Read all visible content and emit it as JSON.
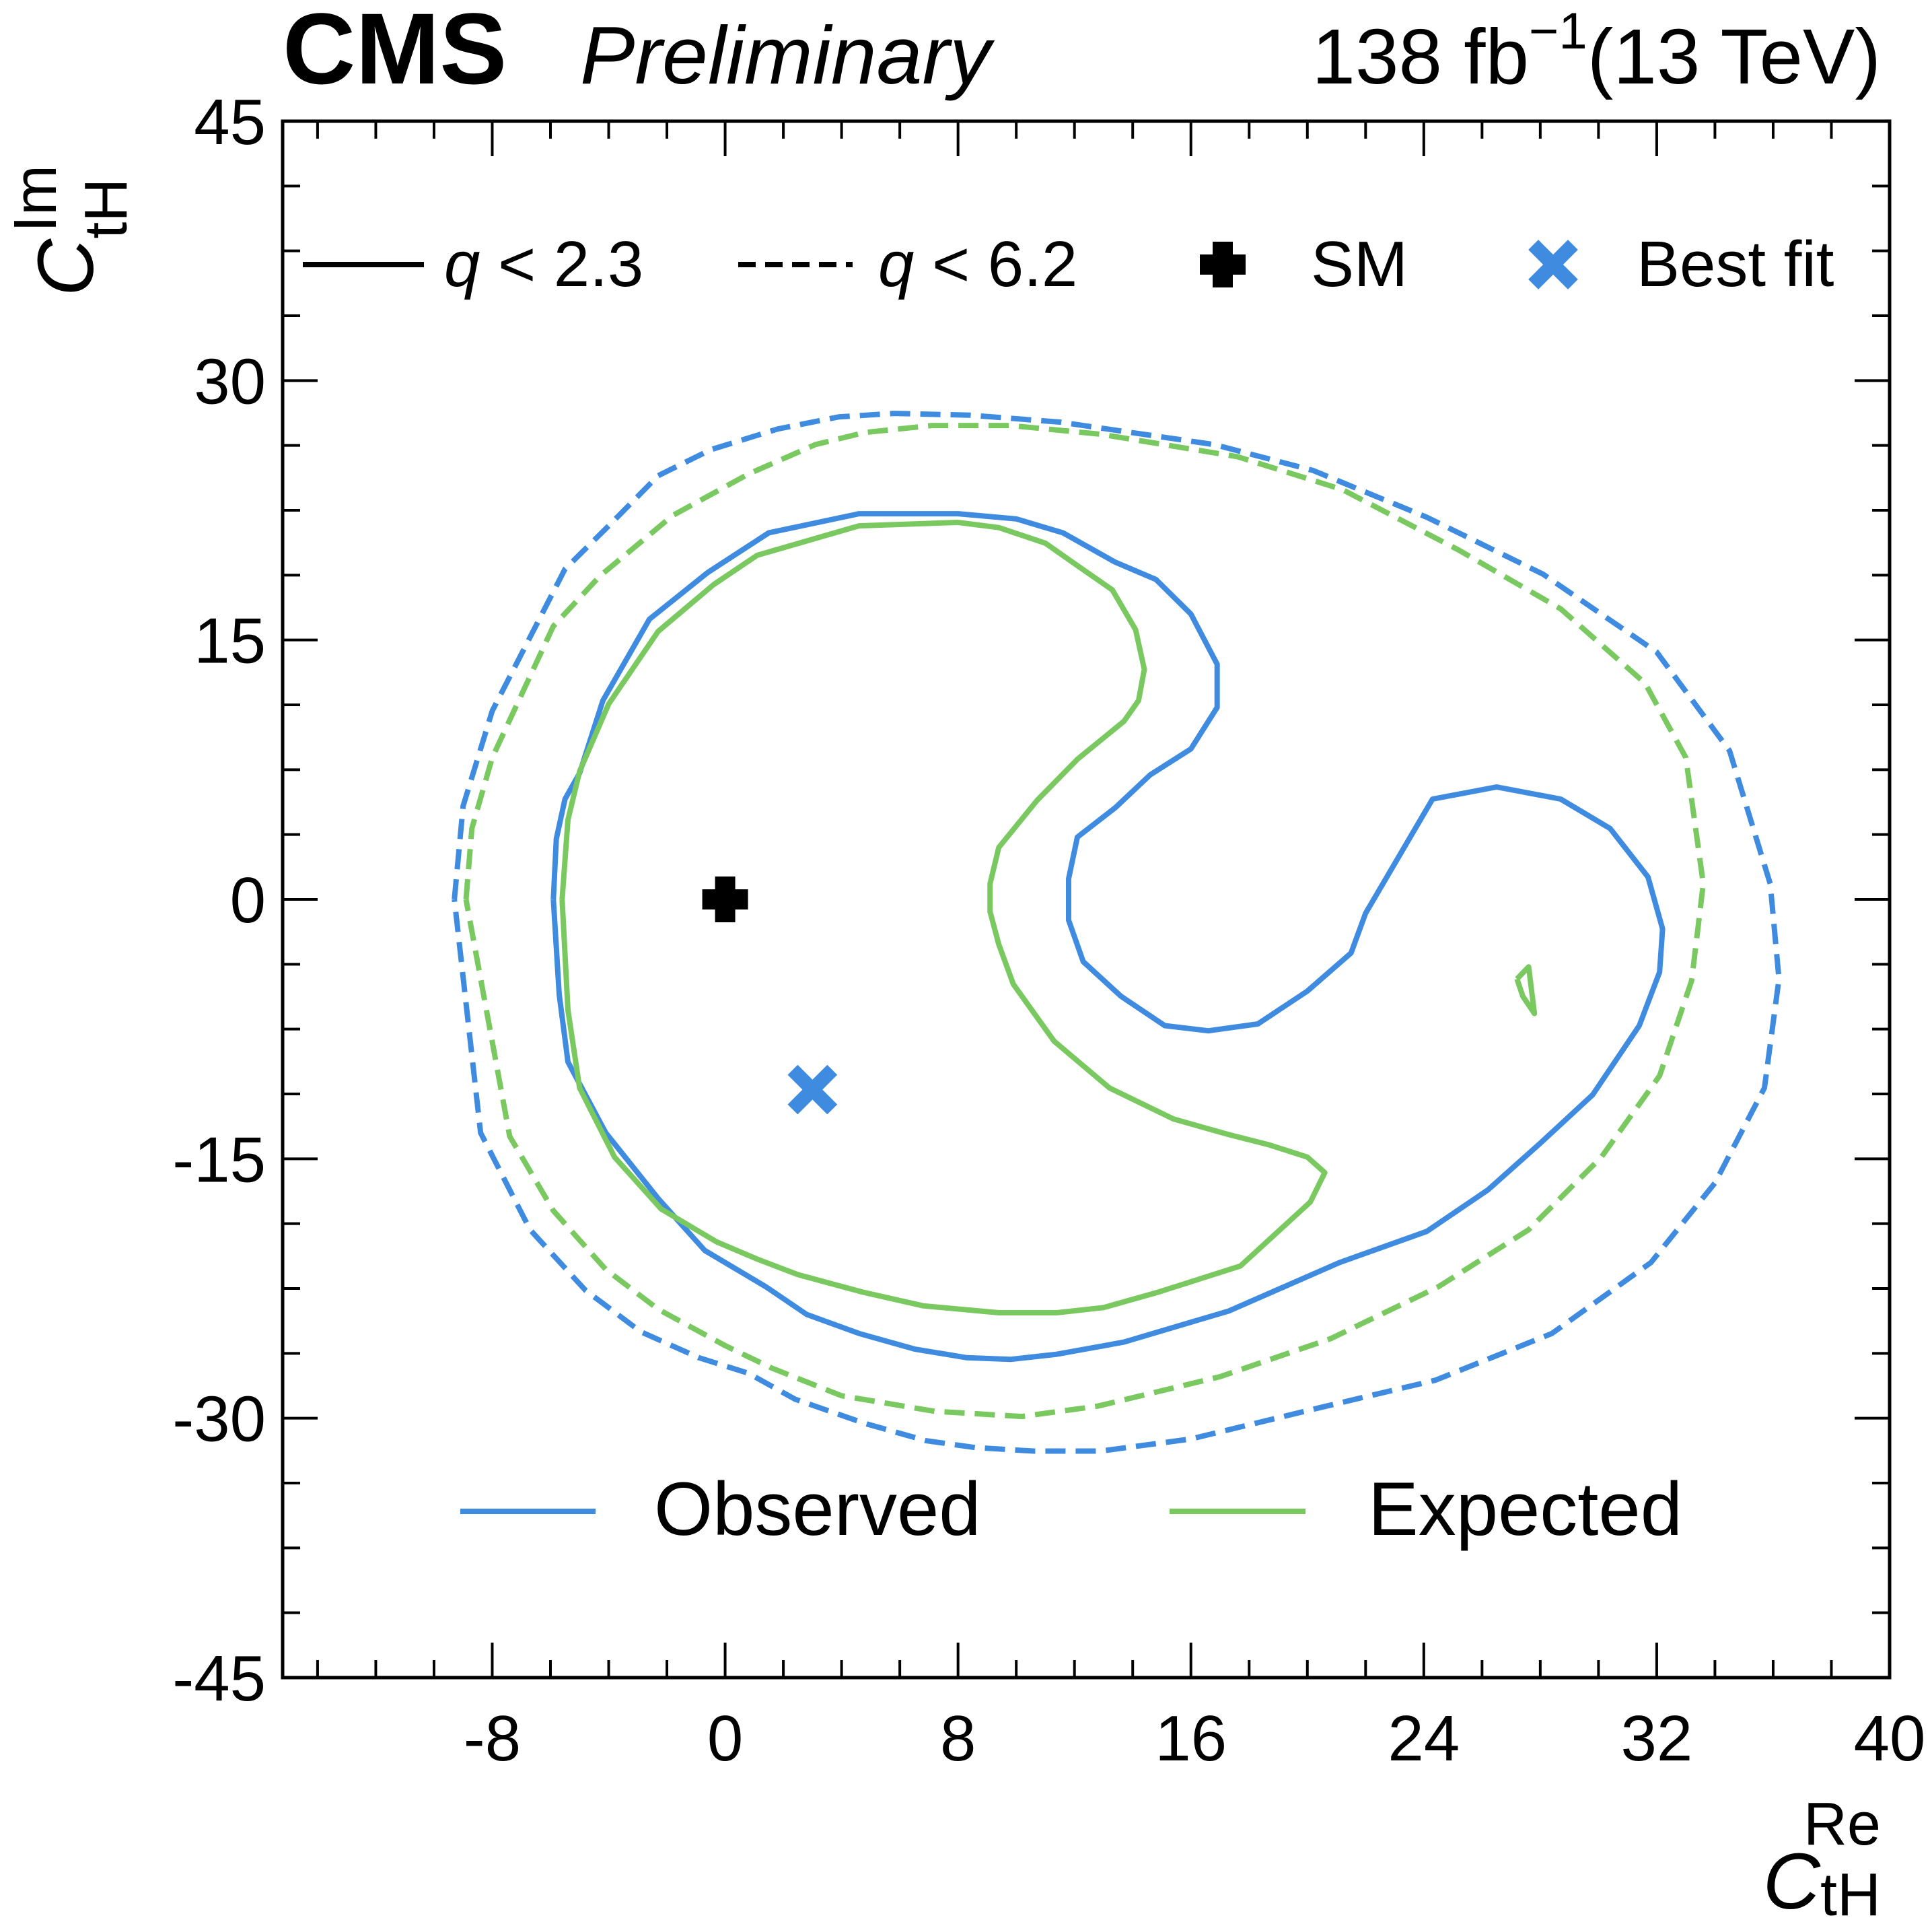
{
  "header": {
    "experiment": "CMS",
    "status": "Preliminary",
    "lumi_value": "138 fb",
    "lumi_exponent": "−1",
    "energy": "(13 TeV)"
  },
  "colors": {
    "observed": "#3f8be0",
    "expected": "#79c960",
    "axis": "#000000",
    "sm_marker": "#000000",
    "bestfit_marker": "#3f8be0"
  },
  "chart_data": {
    "type": "contour",
    "xlabel": {
      "symbol": "C",
      "sub": "tH",
      "sup": "Re"
    },
    "ylabel": {
      "symbol": "C",
      "sub": "tH",
      "sup": "Im"
    },
    "xlim": [
      -15.2,
      40
    ],
    "ylim": [
      -45,
      45
    ],
    "xticks": [
      -8,
      0,
      8,
      16,
      24,
      32,
      40
    ],
    "xtick_labels": [
      "-8",
      "0",
      "8",
      "16",
      "24",
      "32",
      "40"
    ],
    "yticks": [
      -45,
      -30,
      -15,
      0,
      15,
      30,
      45
    ],
    "ytick_labels": [
      "-45",
      "-30",
      "-15",
      "0",
      "15",
      "30",
      "45"
    ],
    "x_minor_step": 2,
    "y_minor_step": 3.75,
    "style_legend": [
      {
        "label": "q < 2.3",
        "q": "q",
        "rest": " < 2.3",
        "dash": "solid"
      },
      {
        "label": "q < 6.2",
        "q": "q",
        "rest": " < 6.2",
        "dash": "dashed"
      },
      {
        "label": "SM",
        "marker": "plus"
      },
      {
        "label": "Best fit",
        "marker": "x"
      }
    ],
    "color_legend": [
      {
        "label": "Observed",
        "color_key": "observed"
      },
      {
        "label": "Expected",
        "color_key": "expected"
      }
    ],
    "points": {
      "SM": {
        "x": 0,
        "y": 0
      },
      "best_fit": {
        "x": 3,
        "y": -11
      }
    },
    "series": [
      {
        "name": "Observed q < 2.3",
        "color_key": "observed",
        "dash": "solid",
        "x": [
          -5.9,
          -5.8,
          -5.5,
          -5.0,
          -4.2,
          -2.6,
          -0.6,
          1.5,
          4.6,
          8.0,
          10.0,
          11.6,
          13.4,
          14.8,
          16.0,
          16.9,
          16.9,
          16.0,
          14.6,
          13.4,
          12.1,
          11.8,
          11.8,
          12.3,
          13.6,
          15.1,
          16.6,
          18.3,
          20.0,
          21.5,
          22.0,
          24.3,
          26.5,
          28.7,
          30.4,
          31.7,
          32.2,
          32.1,
          31.4,
          29.8,
          28.0,
          26.2,
          24.1,
          21.1,
          17.3,
          13.7,
          11.4,
          9.8,
          8.3,
          6.5,
          4.6,
          2.8,
          1.4,
          -0.7,
          -2.3,
          -4.1,
          -5.4,
          -5.7,
          -5.9
        ],
        "y": [
          0,
          3.5,
          5.8,
          7.3,
          11.5,
          16.2,
          18.9,
          21.2,
          22.3,
          22.3,
          22.0,
          21.2,
          19.5,
          18.5,
          16.5,
          13.6,
          11.1,
          8.7,
          7.2,
          5.3,
          3.6,
          1.2,
          -1.2,
          -3.6,
          -5.6,
          -7.3,
          -7.6,
          -7.2,
          -5.3,
          -3.1,
          -0.8,
          5.8,
          6.5,
          5.8,
          4.1,
          1.3,
          -1.7,
          -4.2,
          -7.3,
          -11.3,
          -14.1,
          -16.8,
          -19.2,
          -21.0,
          -23.8,
          -25.6,
          -26.3,
          -26.6,
          -26.5,
          -26.0,
          -25.1,
          -24.0,
          -22.4,
          -20.3,
          -17.3,
          -13.5,
          -9.4,
          -5.5,
          0
        ]
      },
      {
        "name": "Expected q < 2.3",
        "color_key": "expected",
        "dash": "solid",
        "x": [
          -5.6,
          -5.4,
          -5.0,
          -4.0,
          -2.3,
          -0.4,
          1.1,
          4.6,
          8.0,
          9.4,
          11.0,
          12.1,
          13.3,
          14.1,
          14.4,
          14.2,
          13.7,
          12.1,
          10.7,
          9.4,
          9.1,
          9.1,
          9.4,
          9.9,
          11.3,
          13.2,
          15.4,
          17.3,
          18.7,
          20.0,
          20.6,
          20.1,
          17.7,
          14.9,
          13.0,
          11.4,
          9.4,
          6.8,
          4.7,
          2.5,
          1.1,
          -0.3,
          -2.2,
          -3.8,
          -5.0,
          -5.4,
          -5.6
        ],
        "y": [
          0,
          4.6,
          7.4,
          11.3,
          15.5,
          18.2,
          19.9,
          21.6,
          21.8,
          21.5,
          20.6,
          19.3,
          17.9,
          15.6,
          13.3,
          11.5,
          10.3,
          8.1,
          5.7,
          3.0,
          0.9,
          -0.7,
          -2.6,
          -4.9,
          -8.2,
          -10.9,
          -12.7,
          -13.6,
          -14.2,
          -14.9,
          -15.8,
          -17.5,
          -21.2,
          -22.7,
          -23.6,
          -23.9,
          -23.9,
          -23.5,
          -22.7,
          -21.7,
          -20.8,
          -19.8,
          -17.9,
          -14.9,
          -10.9,
          -6.4,
          0
        ]
      },
      {
        "name": "Observed q < 6.2",
        "color_key": "observed",
        "dash": "dashed",
        "x": [
          -9.3,
          -9.0,
          -8.0,
          -5.5,
          -4.0,
          -2.3,
          -0.5,
          1.8,
          3.9,
          5.8,
          8.4,
          11.5,
          16.8,
          20.2,
          24.1,
          28.1,
          32.0,
          34.5,
          35.9,
          36.2,
          35.7,
          34.0,
          31.8,
          28.4,
          24.4,
          20.4,
          16.0,
          12.9,
          10.6,
          8.6,
          6.9,
          4.8,
          2.4,
          0.8,
          -0.9,
          -2.9,
          -4.8,
          -6.7,
          -8.4,
          -9.3
        ],
        "y": [
          0,
          5.4,
          10.9,
          19.1,
          21.6,
          24.5,
          26.0,
          27.2,
          27.9,
          28.1,
          28.0,
          27.6,
          26.3,
          24.8,
          22.1,
          18.8,
          14.3,
          8.6,
          0.9,
          -4.6,
          -10.9,
          -16.4,
          -21.0,
          -25.1,
          -27.8,
          -29.4,
          -31.2,
          -31.9,
          -31.9,
          -31.7,
          -31.3,
          -30.3,
          -28.9,
          -27.4,
          -26.5,
          -25.0,
          -22.6,
          -19.1,
          -13.5,
          0
        ]
      },
      {
        "name": "Expected q < 6.2",
        "color_key": "expected",
        "dash": "dashed",
        "x": [
          -8.9,
          -8.7,
          -8.0,
          -5.9,
          -4.3,
          -1.8,
          0.8,
          3.1,
          4.8,
          7.1,
          9.8,
          12.9,
          17.6,
          21.2,
          25.2,
          28.7,
          31.6,
          33.0,
          33.6,
          33.2,
          32.1,
          30.1,
          27.6,
          24.5,
          20.8,
          17.0,
          12.8,
          10.2,
          7.2,
          4.0,
          1.6,
          0.0,
          -2.3,
          -4.1,
          -5.9,
          -7.4,
          -8.9
        ],
        "y": [
          0,
          4.1,
          8.2,
          15.8,
          18.7,
          22.2,
          24.6,
          26.3,
          27.0,
          27.4,
          27.4,
          26.9,
          25.6,
          23.7,
          20.2,
          16.8,
          12.5,
          8.2,
          0.9,
          -4.7,
          -10.2,
          -14.9,
          -19.1,
          -22.4,
          -25.4,
          -27.6,
          -29.3,
          -29.9,
          -29.6,
          -28.7,
          -27.1,
          -25.8,
          -23.7,
          -21.4,
          -18.0,
          -13.7,
          0
        ]
      },
      {
        "name": "Expected q < 2.3 (small island)",
        "color_key": "expected",
        "dash": "solid",
        "x": [
          27.2,
          27.4,
          27.8,
          27.6,
          27.2
        ],
        "y": [
          -4.6,
          -5.6,
          -6.6,
          -3.9,
          -4.6
        ]
      }
    ]
  }
}
